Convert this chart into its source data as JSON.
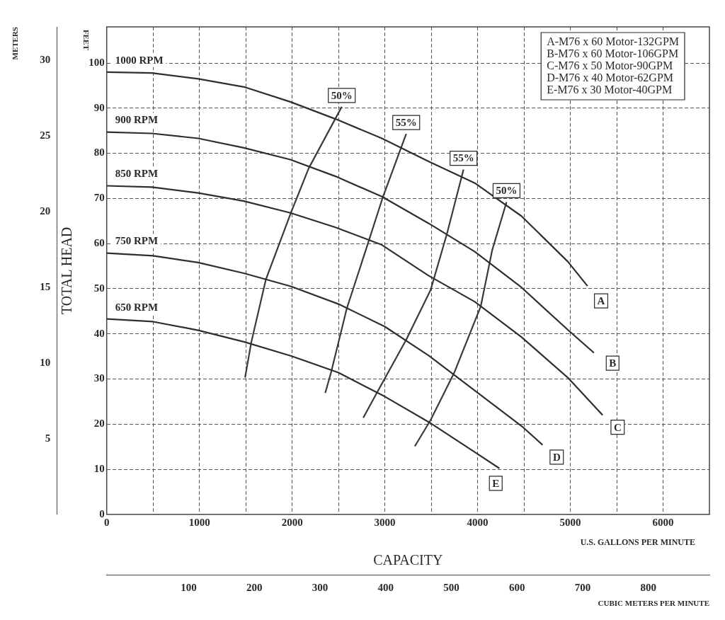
{
  "chart_data": {
    "type": "line",
    "xlabel": "CAPACITY",
    "ylabel": "TOTAL HEAD",
    "y3label": "METERS",
    "x2label": "CUBIC METERS PER MINUTE",
    "xlim": [
      0,
      6500
    ],
    "xticks": [
      0,
      {
        "value": 500,
        "label": null
      },
      1000,
      {
        "value": 1500,
        "label": null
      },
      2000,
      {
        "value": 2500,
        "label": null
      },
      3000,
      {
        "value": 3500,
        "label": null
      },
      4000,
      {
        "value": 4500,
        "label": null
      },
      5000,
      {
        "value": 5500,
        "label": null
      },
      6000
    ],
    "ylim": [
      0,
      108
    ],
    "yticks": [
      0,
      10,
      20,
      30,
      40,
      50,
      60,
      70,
      80,
      90,
      100
    ],
    "y3lim": [
      0,
      32.2
    ],
    "y3ticks": [
      5,
      10,
      15,
      20,
      25,
      30
    ],
    "x2lim": [
      -25,
      893
    ],
    "x2ticks": [
      100,
      200,
      300,
      400,
      500,
      600,
      700,
      800
    ],
    "grid": true,
    "marker": "none",
    "line_style": "solid",
    "series": [
      {
        "name": "1000 RPM",
        "color": "#2e2e2e",
        "x": [
          0,
          486,
          987,
          1480,
          1980,
          2467,
          2968,
          3470,
          3970,
          4472,
          4973,
          5185
        ],
        "values": [
          98,
          97.8,
          96.5,
          94.7,
          91.4,
          87.6,
          83.3,
          78.2,
          73.4,
          66.1,
          56,
          50.6
        ]
      },
      {
        "name": "900 RPM",
        "color": "#2e2e2e",
        "x": [
          0,
          486,
          987,
          1480,
          1980,
          2467,
          2968,
          3470,
          3970,
          4472,
          4973,
          5255
        ],
        "values": [
          84.7,
          84.4,
          83.3,
          81.2,
          78.6,
          74.9,
          70.4,
          64.5,
          58.2,
          50.3,
          40.9,
          35.8
        ]
      },
      {
        "name": "850 RPM",
        "color": "#2e2e2e",
        "x": [
          0,
          486,
          987,
          1480,
          1980,
          2467,
          2968,
          3470,
          3970,
          4472,
          4973,
          5348
        ],
        "values": [
          72.8,
          72.5,
          71.2,
          69.4,
          66.8,
          63.6,
          59.7,
          52.9,
          47.1,
          39.3,
          30.3,
          22
        ]
      },
      {
        "name": "750 RPM",
        "color": "#2e2e2e",
        "x": [
          0,
          500,
          985,
          1485,
          1990,
          2500,
          3000,
          3478,
          3985,
          4490,
          4700
        ],
        "values": [
          57.9,
          57.3,
          55.8,
          53.4,
          50.5,
          46.6,
          41.6,
          35.1,
          27.2,
          19.3,
          15.4
        ]
      },
      {
        "name": "650 RPM",
        "color": "#2e2e2e",
        "x": [
          0,
          500,
          985,
          1485,
          1990,
          2500,
          3000,
          3478,
          3985,
          4235
        ],
        "values": [
          43.3,
          42.7,
          40.8,
          38.2,
          35.1,
          31.4,
          26.1,
          20.4,
          13.6,
          10.2
        ]
      },
      {
        "name": "50%",
        "color": "#3a3a3a",
        "x": [
          1492,
          1560,
          1716,
          1986,
          2179,
          2535
        ],
        "values": [
          30.3,
          38.2,
          52,
          66.8,
          76.7,
          90.3
        ]
      },
      {
        "name": "55%",
        "color": "#3a3a3a",
        "x": [
          2357,
          2419,
          2589,
          2820,
          2975,
          3230
        ],
        "values": [
          26.9,
          31.4,
          45.6,
          60.2,
          70.1,
          84.3
        ]
      },
      {
        "name": "55%",
        "color": "#3a3a3a",
        "x": [
          2767,
          2921,
          3230,
          3493,
          3671,
          3848
        ],
        "values": [
          21.4,
          27.2,
          38.7,
          49.7,
          62.3,
          76.4
        ]
      },
      {
        "name": "50%",
        "color": "#3a3a3a",
        "x": [
          3323,
          3493,
          3748,
          4034,
          4158,
          4312
        ],
        "values": [
          15.1,
          20.9,
          31.4,
          46.1,
          58.6,
          69.2
        ]
      }
    ],
    "annotations": [
      {
        "text": "A",
        "x": 5332,
        "y": 47.3
      },
      {
        "text": "B",
        "x": 5456,
        "y": 33.5
      },
      {
        "text": "C",
        "x": 5510,
        "y": 19.3
      },
      {
        "text": "D",
        "x": 4853,
        "y": 12.7
      },
      {
        "text": "E",
        "x": 4196,
        "y": 6.9
      },
      "FEET",
      "U.S. GALLONS PER MINUTE",
      "A-M76 x 60 Motor-132GPM",
      "B-M76 x 60 Motor-106GPM",
      "C-M76 x 50 Motor-90GPM",
      "D-M76 x 40 Motor-62GPM",
      "E-M76 x 30 Motor-40GPM"
    ]
  }
}
